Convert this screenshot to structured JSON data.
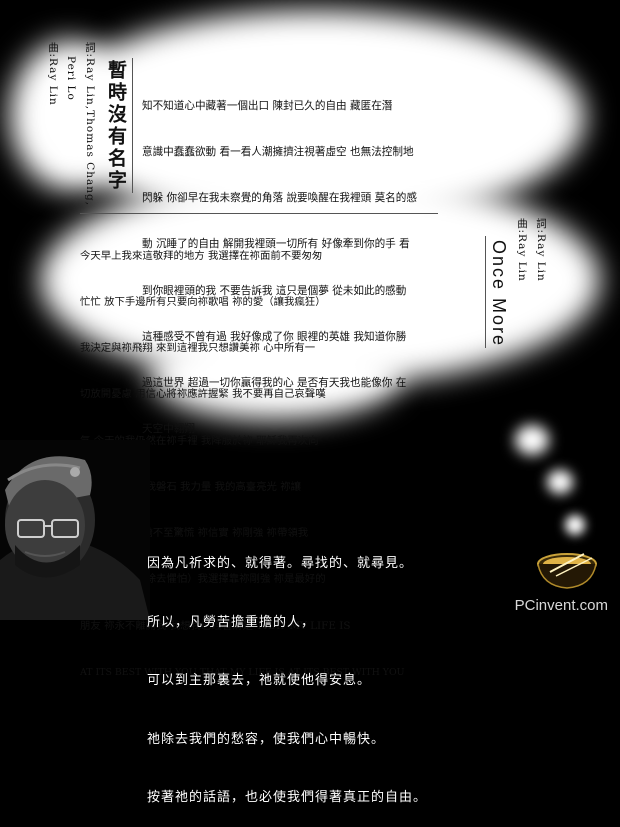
{
  "song1": {
    "title": "暫時沒有名字",
    "credit_lyrics": "詞:Ray Lin,Thomas Chang,",
    "credit_lyrics2": "Peri Lo",
    "credit_music": "曲:Ray Lin",
    "lines": [
      "知不知道心中藏著一個出口 陳封已久的自由 藏匿在潛",
      "意識中蠢蠢欲動 看一看人潮擁擠注視著虛空 也無法控制地",
      "閃躲 你卻早在我未察覺的角落 說要喚醒在我裡頭 莫名的感",
      "動 沉睡了的自由 解開我裡頭一切所有 好像牽到你的手 看",
      "到你眼裡頭的我 不要告訴我 這只是個夢 從未如此的感動",
      "這種感受不曾有過 我好像成了你 眼裡的英雄 我知道你勝",
      "過這世界 超過一切你贏得我的心 是否有天我也能像你 在",
      "天空中翱翔"
    ]
  },
  "song2": {
    "title": "Once More",
    "credit_lyrics": "詞:Ray Lin",
    "credit_music": "曲:Ray Lin",
    "lines": [
      "今天早上我來這敬拜的地方 我選擇在祢面前不要匆匆",
      "忙忙 放下手邊所有只要向祢歌唱 祢的愛（讓我瘋狂）",
      "我決定與祢飛翔 來到這裡我只想讚美祢 心中所有一",
      "切放開憂慮 用信心將祢應許握緊 我不要再自己哀聲嘆",
      "氣 今天的我仍然在祢手裡 我降服於祢 耶穌我再次向",
      "祢獻上我自己 我磐石 我力量 我的高臺亮光 祢讓",
      "我在黑暗中壯膽不至驚慌 祢信實 祢剛強 祢帶領我",
      "方向 祢的愛（除去懼怕）我選擇靠祢剛強 祢是最好的",
      "朋友 祢永不離開我 我想我已經看清楚 THAT MY LIFE IS",
      "AT ITS BEST WITH YOU THAT MY LIFE IS AT ITS BEST WITH YOU"
    ]
  },
  "bible_verse": [
    "因為凡祈求的、就得著。尋找的、就尋見。",
    "所以，凡勞苦擔重擔的人，",
    "可以到主那裏去，祂就使他得安息。",
    "祂除去我們的愁容，使我們心中暢快。",
    "按著祂的話語，也必使我們得著真正的自由。"
  ],
  "watermark": "PCinvent.com"
}
